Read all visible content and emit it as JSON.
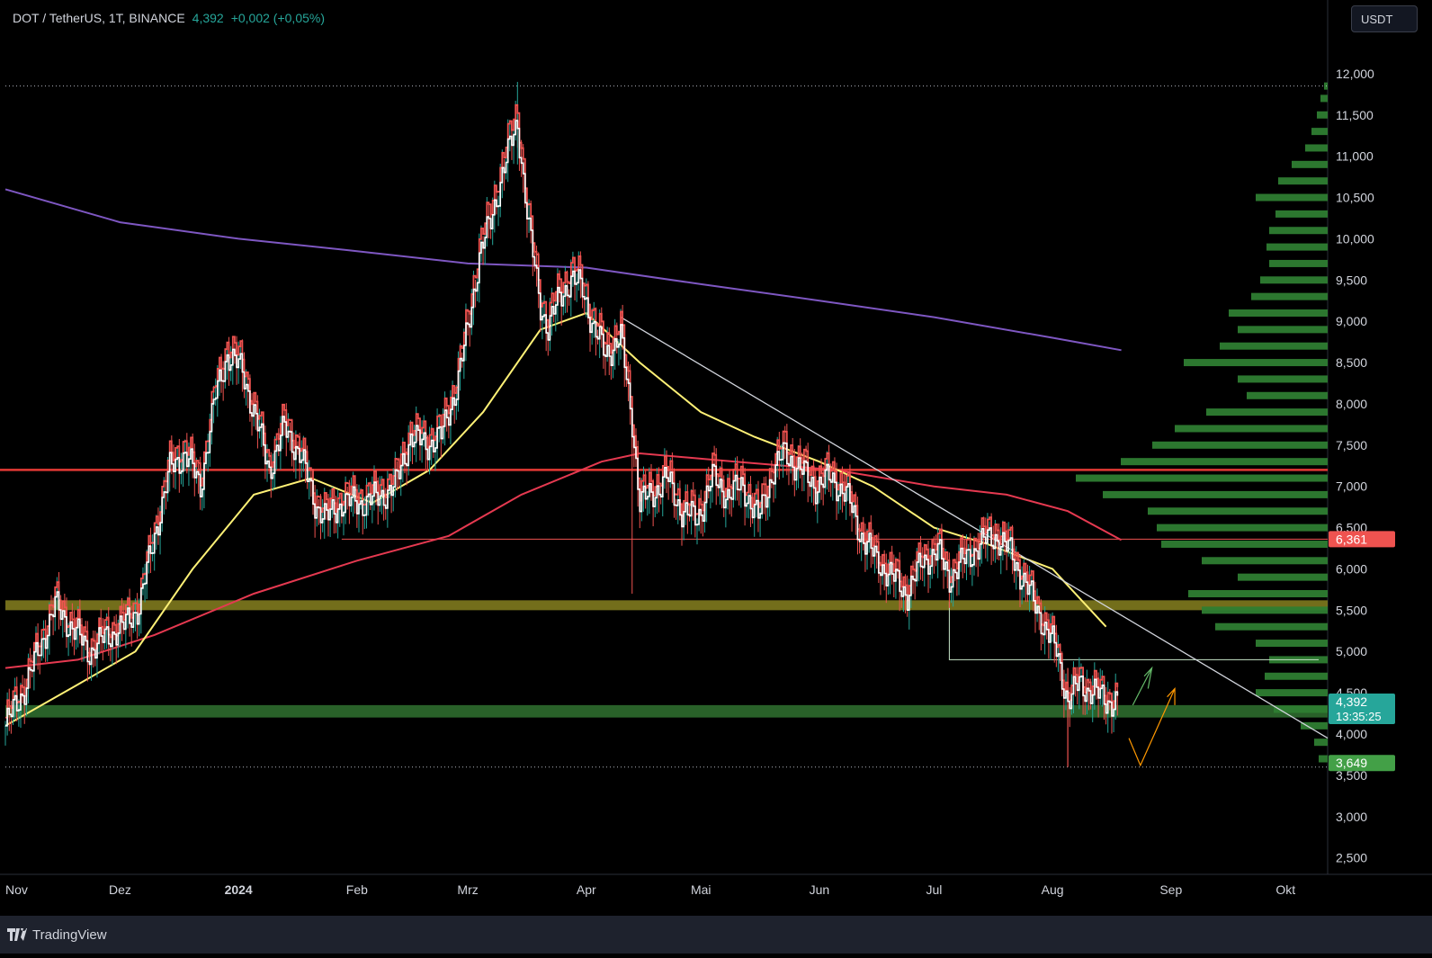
{
  "header": {
    "symbol": "DOT / TetherUS, 1T, BINANCE",
    "price": "4,392",
    "change": "+0,002 (+0,05%)"
  },
  "currency_button": "USDT",
  "footer": {
    "brand": "TradingView"
  },
  "colors": {
    "background": "#000000",
    "up_candle": "#26a69a",
    "down_candle": "#ef5350",
    "ema_yellow": "#fff176",
    "ma_red": "#e53950",
    "ma_purple": "#7e57c2",
    "volume_profile": "#2e7d32",
    "resistance_line": "#e53935",
    "zone_yellow": "#807a1e",
    "zone_green": "#2e6b2e",
    "trendline": "#d1d4dc",
    "arrow_green": "#66bb6a",
    "arrow_orange": "#ff9800"
  },
  "chart_data": {
    "type": "candlestick",
    "y_ticks": [
      "12,000",
      "11,500",
      "11,000",
      "10,500",
      "10,000",
      "9,500",
      "9,000",
      "8,500",
      "8,000",
      "7,500",
      "7,000",
      "6,500",
      "6,000",
      "5,500",
      "5,000",
      "4,500",
      "4,000",
      "3,500",
      "3,000",
      "2,500"
    ],
    "y_range": [
      2.3,
      12.5
    ],
    "x_range": [
      "2023-11-01",
      "2024-10-12"
    ],
    "x_ticks": [
      {
        "label": "Nov",
        "date": "2023-11-01",
        "bold": false
      },
      {
        "label": "Dez",
        "date": "2023-12-01",
        "bold": false
      },
      {
        "label": "2024",
        "date": "2024-01-01",
        "bold": true
      },
      {
        "label": "Feb",
        "date": "2024-02-01",
        "bold": false
      },
      {
        "label": "Mrz",
        "date": "2024-03-01",
        "bold": false
      },
      {
        "label": "Apr",
        "date": "2024-04-01",
        "bold": false
      },
      {
        "label": "Mai",
        "date": "2024-05-01",
        "bold": false
      },
      {
        "label": "Jun",
        "date": "2024-06-01",
        "bold": false
      },
      {
        "label": "Jul",
        "date": "2024-07-01",
        "bold": false
      },
      {
        "label": "Aug",
        "date": "2024-08-01",
        "bold": false
      },
      {
        "label": "Sep",
        "date": "2024-09-01",
        "bold": false
      },
      {
        "label": "Okt",
        "date": "2024-10-01",
        "bold": false
      }
    ],
    "price_close_path": [
      [
        "2023-11-01",
        4.1
      ],
      [
        "2023-11-06",
        4.55
      ],
      [
        "2023-11-10",
        5.05
      ],
      [
        "2023-11-14",
        5.55
      ],
      [
        "2023-11-19",
        5.25
      ],
      [
        "2023-11-23",
        5.0
      ],
      [
        "2023-11-28",
        5.2
      ],
      [
        "2023-12-02",
        5.3
      ],
      [
        "2023-12-06",
        5.55
      ],
      [
        "2023-12-10",
        6.4
      ],
      [
        "2023-12-14",
        7.2
      ],
      [
        "2023-12-18",
        7.4
      ],
      [
        "2023-12-22",
        7.0
      ],
      [
        "2023-12-26",
        8.1
      ],
      [
        "2023-12-29",
        8.6
      ],
      [
        "2024-01-02",
        8.4
      ],
      [
        "2024-01-05",
        7.9
      ],
      [
        "2024-01-09",
        7.2
      ],
      [
        "2024-01-13",
        7.7
      ],
      [
        "2024-01-17",
        7.4
      ],
      [
        "2024-01-21",
        6.8
      ],
      [
        "2024-01-24",
        6.6
      ],
      [
        "2024-01-28",
        6.8
      ],
      [
        "2024-02-02",
        6.8
      ],
      [
        "2024-02-06",
        6.85
      ],
      [
        "2024-02-11",
        7.0
      ],
      [
        "2024-02-15",
        7.6
      ],
      [
        "2024-02-19",
        7.5
      ],
      [
        "2024-02-23",
        7.6
      ],
      [
        "2024-02-27",
        8.2
      ],
      [
        "2024-03-01",
        8.9
      ],
      [
        "2024-03-04",
        9.8
      ],
      [
        "2024-03-07",
        10.2
      ],
      [
        "2024-03-10",
        10.8
      ],
      [
        "2024-03-14",
        11.4
      ],
      [
        "2024-03-17",
        10.1
      ],
      [
        "2024-03-20",
        9.2
      ],
      [
        "2024-03-22",
        8.9
      ],
      [
        "2024-03-25",
        9.3
      ],
      [
        "2024-03-28",
        9.5
      ],
      [
        "2024-03-31",
        9.4
      ],
      [
        "2024-04-03",
        8.9
      ],
      [
        "2024-04-06",
        8.6
      ],
      [
        "2024-04-10",
        8.8
      ],
      [
        "2024-04-13",
        7.8
      ],
      [
        "2024-04-15",
        6.8
      ],
      [
        "2024-04-18",
        6.9
      ],
      [
        "2024-04-22",
        7.1
      ],
      [
        "2024-04-26",
        6.7
      ],
      [
        "2024-04-30",
        6.6
      ],
      [
        "2024-05-04",
        7.1
      ],
      [
        "2024-05-08",
        6.9
      ],
      [
        "2024-05-12",
        7.0
      ],
      [
        "2024-05-16",
        6.6
      ],
      [
        "2024-05-20",
        7.2
      ],
      [
        "2024-05-23",
        7.4
      ],
      [
        "2024-05-27",
        7.2
      ],
      [
        "2024-05-31",
        7.0
      ],
      [
        "2024-06-04",
        7.1
      ],
      [
        "2024-06-08",
        6.9
      ],
      [
        "2024-06-12",
        6.4
      ],
      [
        "2024-06-16",
        6.1
      ],
      [
        "2024-06-20",
        5.9
      ],
      [
        "2024-06-24",
        5.7
      ],
      [
        "2024-06-28",
        6.1
      ],
      [
        "2024-07-02",
        6.2
      ],
      [
        "2024-07-05",
        5.9
      ],
      [
        "2024-07-09",
        6.1
      ],
      [
        "2024-07-13",
        6.3
      ],
      [
        "2024-07-17",
        6.4
      ],
      [
        "2024-07-21",
        6.2
      ],
      [
        "2024-07-25",
        5.8
      ],
      [
        "2024-07-29",
        5.4
      ],
      [
        "2024-08-02",
        5.0
      ],
      [
        "2024-08-05",
        4.4
      ],
      [
        "2024-08-08",
        4.6
      ],
      [
        "2024-08-12",
        4.5
      ],
      [
        "2024-08-15",
        4.4
      ],
      [
        "2024-08-18",
        4.39
      ]
    ],
    "ma_yellow_path": [
      [
        "2023-11-01",
        4.1
      ],
      [
        "2023-11-20",
        4.6
      ],
      [
        "2023-12-05",
        5.0
      ],
      [
        "2023-12-20",
        6.0
      ],
      [
        "2024-01-05",
        6.9
      ],
      [
        "2024-01-20",
        7.1
      ],
      [
        "2024-02-05",
        6.8
      ],
      [
        "2024-02-20",
        7.2
      ],
      [
        "2024-03-05",
        7.9
      ],
      [
        "2024-03-20",
        8.9
      ],
      [
        "2024-04-01",
        9.1
      ],
      [
        "2024-04-15",
        8.5
      ],
      [
        "2024-05-01",
        7.9
      ],
      [
        "2024-05-15",
        7.6
      ],
      [
        "2024-06-01",
        7.3
      ],
      [
        "2024-06-15",
        7.0
      ],
      [
        "2024-07-01",
        6.5
      ],
      [
        "2024-07-15",
        6.3
      ],
      [
        "2024-08-01",
        6.0
      ],
      [
        "2024-08-15",
        5.3
      ]
    ],
    "ma_red_path": [
      [
        "2023-11-01",
        4.8
      ],
      [
        "2023-11-20",
        4.9
      ],
      [
        "2023-12-10",
        5.2
      ],
      [
        "2024-01-05",
        5.7
      ],
      [
        "2024-02-01",
        6.1
      ],
      [
        "2024-02-25",
        6.4
      ],
      [
        "2024-03-15",
        6.9
      ],
      [
        "2024-04-05",
        7.3
      ],
      [
        "2024-04-15",
        7.4
      ],
      [
        "2024-05-10",
        7.3
      ],
      [
        "2024-06-05",
        7.2
      ],
      [
        "2024-07-01",
        7.0
      ],
      [
        "2024-07-20",
        6.9
      ],
      [
        "2024-08-05",
        6.7
      ],
      [
        "2024-08-19",
        6.35
      ]
    ],
    "ma_purple_path": [
      [
        "2023-11-01",
        10.6
      ],
      [
        "2023-12-01",
        10.2
      ],
      [
        "2024-01-01",
        10.0
      ],
      [
        "2024-02-01",
        9.85
      ],
      [
        "2024-03-01",
        9.7
      ],
      [
        "2024-04-01",
        9.65
      ],
      [
        "2024-05-01",
        9.45
      ],
      [
        "2024-06-01",
        9.25
      ],
      [
        "2024-07-01",
        9.05
      ],
      [
        "2024-08-01",
        8.8
      ],
      [
        "2024-08-19",
        8.65
      ]
    ],
    "horizontal_lines": [
      {
        "name": "ath-dotted",
        "value": 11.85,
        "style": "dotted"
      },
      {
        "name": "resistance-red",
        "value": 7.2,
        "style": "solid"
      },
      {
        "name": "support-6361",
        "value": 6.361,
        "style": "thin"
      },
      {
        "name": "low-dotted",
        "value": 3.6,
        "style": "dotted"
      }
    ],
    "zones": [
      {
        "name": "yellow-zone",
        "from": 5.5,
        "to": 5.62
      },
      {
        "name": "green-zone",
        "from": 4.2,
        "to": 4.35
      }
    ],
    "trendline": [
      [
        "2024-04-10",
        9.05
      ],
      [
        "2024-10-12",
        3.95
      ]
    ],
    "volume_profile": [
      [
        11.85,
        4
      ],
      [
        11.7,
        8
      ],
      [
        11.5,
        12
      ],
      [
        11.3,
        18
      ],
      [
        11.1,
        25
      ],
      [
        10.9,
        40
      ],
      [
        10.7,
        55
      ],
      [
        10.5,
        80
      ],
      [
        10.3,
        58
      ],
      [
        10.1,
        65
      ],
      [
        9.9,
        68
      ],
      [
        9.7,
        65
      ],
      [
        9.5,
        75
      ],
      [
        9.3,
        85
      ],
      [
        9.1,
        110
      ],
      [
        8.9,
        100
      ],
      [
        8.7,
        120
      ],
      [
        8.5,
        160
      ],
      [
        8.3,
        100
      ],
      [
        8.1,
        90
      ],
      [
        7.9,
        135
      ],
      [
        7.7,
        170
      ],
      [
        7.5,
        195
      ],
      [
        7.3,
        230
      ],
      [
        7.1,
        280
      ],
      [
        6.9,
        250
      ],
      [
        6.7,
        200
      ],
      [
        6.5,
        190
      ],
      [
        6.3,
        185
      ],
      [
        6.1,
        140
      ],
      [
        5.9,
        100
      ],
      [
        5.7,
        155
      ],
      [
        5.5,
        140
      ],
      [
        5.3,
        125
      ],
      [
        5.1,
        80
      ],
      [
        4.9,
        65
      ],
      [
        4.7,
        70
      ],
      [
        4.5,
        80
      ],
      [
        4.3,
        60
      ],
      [
        4.1,
        30
      ],
      [
        3.9,
        15
      ],
      [
        3.7,
        10
      ]
    ],
    "price_labels": [
      {
        "value": "6,361",
        "price": 6.361,
        "color": "#ef5350"
      },
      {
        "value": "4,392",
        "sub": "13:35:25",
        "price": 4.392,
        "color": "#26a69a"
      },
      {
        "value": "3,649",
        "price": 3.649,
        "color": "#43a047"
      }
    ]
  }
}
